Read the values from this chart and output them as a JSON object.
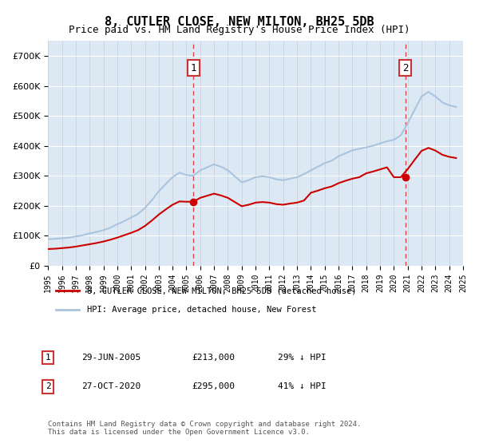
{
  "title": "8, CUTLER CLOSE, NEW MILTON, BH25 5DB",
  "subtitle": "Price paid vs. HM Land Registry's House Price Index (HPI)",
  "legend_line1": "8, CUTLER CLOSE, NEW MILTON, BH25 5DB (detached house)",
  "legend_line2": "HPI: Average price, detached house, New Forest",
  "transaction1_label": "1",
  "transaction1_date": "29-JUN-2005",
  "transaction1_price": "£213,000",
  "transaction1_hpi": "29% ↓ HPI",
  "transaction1_year": 2005.5,
  "transaction2_label": "2",
  "transaction2_date": "27-OCT-2020",
  "transaction2_price": "£295,000",
  "transaction2_hpi": "41% ↓ HPI",
  "transaction2_year": 2020.83,
  "footnote": "Contains HM Land Registry data © Crown copyright and database right 2024.\nThis data is licensed under the Open Government Licence v3.0.",
  "hpi_color": "#aac4dd",
  "price_color": "#cc0000",
  "marker_color": "#cc0000",
  "dashed_line_color": "#cc3333",
  "background_color": "#dce9f5",
  "ylim_min": 0,
  "ylim_max": 750000,
  "xmin": 1995,
  "xmax": 2025
}
